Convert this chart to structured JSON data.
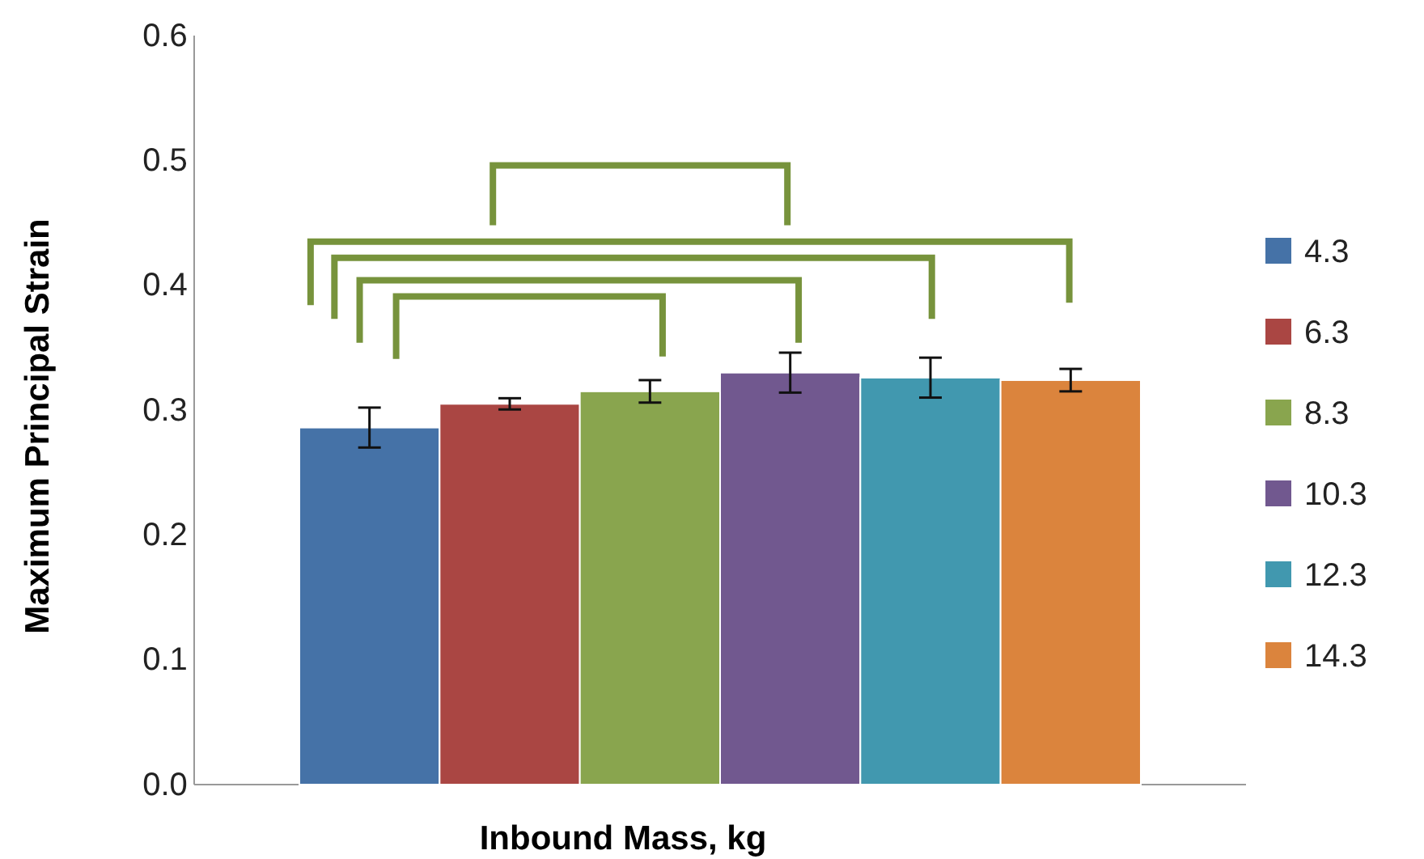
{
  "chart_data": {
    "type": "bar",
    "xlabel": "Inbound Mass, kg",
    "ylabel": "Maximum Principal Strain",
    "categories": [
      null
    ],
    "series": [
      {
        "name": "4.3",
        "color": "#4572a7",
        "values": [
          0.286
        ],
        "errors": [
          0.016
        ]
      },
      {
        "name": "6.3",
        "color": "#aa4643",
        "values": [
          0.305
        ],
        "errors": [
          0.0045
        ]
      },
      {
        "name": "8.3",
        "color": "#89a54e",
        "values": [
          0.315
        ],
        "errors": [
          0.009
        ]
      },
      {
        "name": "10.3",
        "color": "#71588f",
        "values": [
          0.33
        ],
        "errors": [
          0.016
        ]
      },
      {
        "name": "12.3",
        "color": "#4198af",
        "values": [
          0.326
        ],
        "errors": [
          0.016
        ]
      },
      {
        "name": "14.3",
        "color": "#db843d",
        "values": [
          0.324
        ],
        "errors": [
          0.009
        ]
      }
    ],
    "ylim": [
      0,
      0.6
    ],
    "yticks": [
      {
        "value": 0,
        "label": "0.0"
      },
      {
        "value": 0.1,
        "label": "0.1"
      },
      {
        "value": 0.2,
        "label": "0.2"
      },
      {
        "value": 0.3,
        "label": "0.3"
      },
      {
        "value": 0.4,
        "label": "0.4"
      },
      {
        "value": 0.5,
        "label": "0.5"
      },
      {
        "value": 0.6,
        "label": "0.6"
      }
    ],
    "grid": false,
    "legend": "right"
  }
}
